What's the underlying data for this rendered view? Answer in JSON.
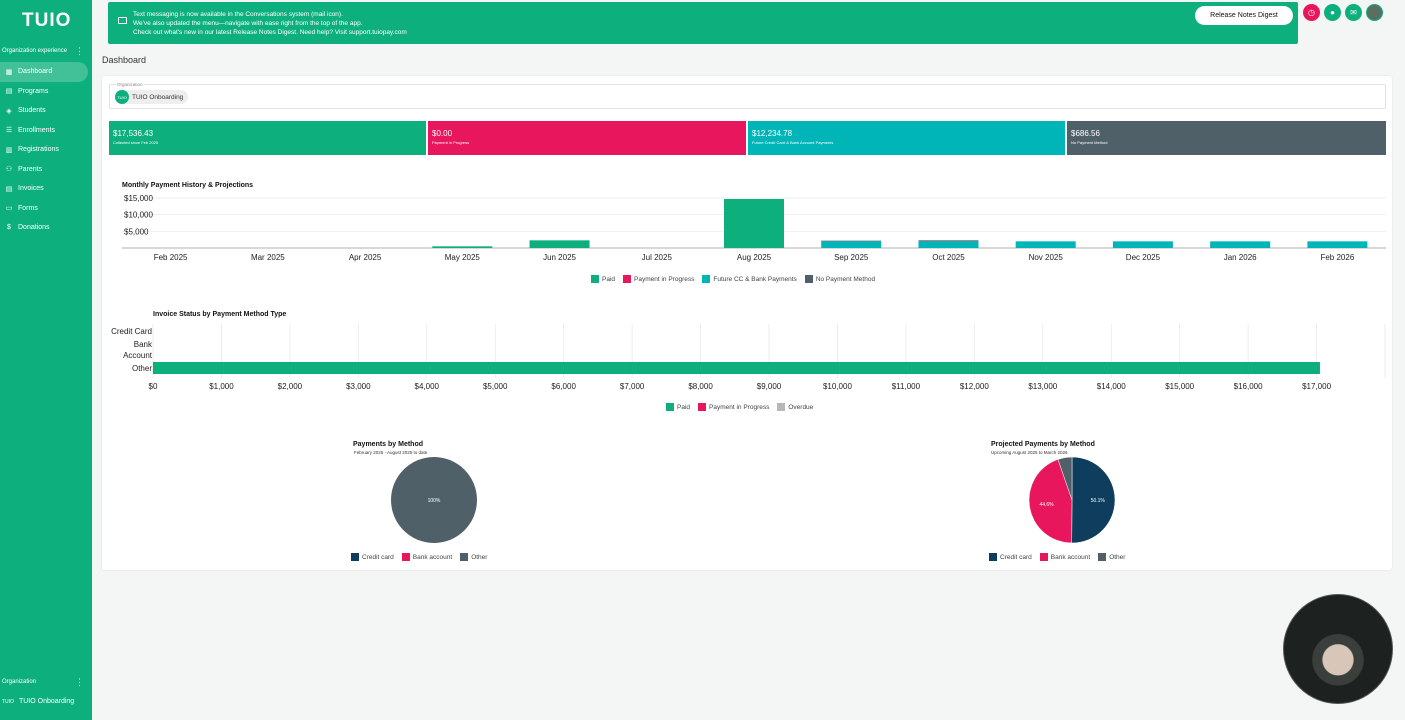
{
  "app": {
    "logo": "TUIO"
  },
  "sidebar": {
    "section_label": "Organization experience",
    "items": [
      {
        "label": "Dashboard",
        "icon": "dashboard-icon",
        "active": true
      },
      {
        "label": "Programs",
        "icon": "programs-icon"
      },
      {
        "label": "Students",
        "icon": "students-icon"
      },
      {
        "label": "Enrollments",
        "icon": "enrollments-icon"
      },
      {
        "label": "Registrations",
        "icon": "registrations-icon"
      },
      {
        "label": "Parents",
        "icon": "parents-icon"
      },
      {
        "label": "Invoices",
        "icon": "invoices-icon"
      },
      {
        "label": "Forms",
        "icon": "forms-icon"
      },
      {
        "label": "Donations",
        "icon": "donations-icon"
      }
    ],
    "footer_label": "Organization",
    "footer_mini": "TUIO",
    "footer_org": "TUIO Onboarding"
  },
  "banner": {
    "line1": "Text messaging is now available in the Conversations system (mail icon).",
    "line2": "We've also updated the menu—navigate with ease right from the top of the app.",
    "line3": "Check out what's new in our latest Release Notes Digest. Need help? Visit support.tuiopay.com",
    "button": "Release Notes Digest"
  },
  "page_title": "Dashboard",
  "org_field": {
    "label": "Organization",
    "avatar": "TUIO",
    "value": "TUIO Onboarding"
  },
  "stats": [
    {
      "value": "$17,536.43",
      "caption": "Collected since Feb 2025",
      "color": "#0db07d"
    },
    {
      "value": "$0.00",
      "caption": "Payment in Progress",
      "color": "#e8175d"
    },
    {
      "value": "$12,234.78",
      "caption": "Future Credit Card & Bank Account Payments",
      "color": "#00b5b8"
    },
    {
      "value": "$686.56",
      "caption": "No Payment Method",
      "color": "#4f6069"
    }
  ],
  "colors": {
    "paid": "#0db07d",
    "progress": "#e8175d",
    "future": "#00b5b8",
    "nopay": "#4f6069",
    "overdue": "#b7b7b7",
    "credit": "#0f3d5e"
  },
  "chart_data": [
    {
      "type": "bar",
      "title": "Monthly Payment History & Projections",
      "categories": [
        "Feb 2025",
        "Mar 2025",
        "Apr 2025",
        "May 2025",
        "Jun 2025",
        "Jul 2025",
        "Aug 2025",
        "Sep 2025",
        "Oct 2025",
        "Nov 2025",
        "Dec 2025",
        "Jan 2026",
        "Feb 2026"
      ],
      "series": [
        {
          "name": "Paid",
          "values": [
            0,
            0,
            0,
            500,
            2300,
            0,
            14700,
            0,
            0,
            0,
            0,
            0,
            0
          ]
        },
        {
          "name": "Payment in Progress",
          "values": [
            0,
            0,
            0,
            0,
            0,
            0,
            0,
            0,
            0,
            0,
            0,
            0,
            0
          ]
        },
        {
          "name": "Future CC & Bank Payments",
          "values": [
            0,
            0,
            0,
            0,
            0,
            0,
            0,
            2000,
            2000,
            2000,
            2000,
            2000,
            2000
          ]
        },
        {
          "name": "No Payment Method",
          "values": [
            0,
            0,
            0,
            0,
            0,
            0,
            0,
            200,
            300,
            0,
            0,
            0,
            0
          ]
        }
      ],
      "yticks": [
        "$15,000",
        "$10,000",
        "$5,000"
      ],
      "ylim": [
        0,
        15000
      ],
      "stacked": true
    },
    {
      "type": "bar",
      "orientation": "horizontal",
      "title": "Invoice Status by Payment Method Type",
      "categories": [
        "Credit Card",
        "Bank Account",
        "Other"
      ],
      "series": [
        {
          "name": "Paid",
          "values": [
            0,
            0,
            17050
          ]
        },
        {
          "name": "Payment in Progress",
          "values": [
            0,
            0,
            0
          ]
        },
        {
          "name": "Overdue",
          "values": [
            0,
            0,
            0
          ]
        }
      ],
      "xticks": [
        "$0",
        "$1,000",
        "$2,000",
        "$3,000",
        "$4,000",
        "$5,000",
        "$6,000",
        "$7,000",
        "$8,000",
        "$9,000",
        "$10,000",
        "$11,000",
        "$12,000",
        "$13,000",
        "$14,000",
        "$15,000",
        "$16,000",
        "$17,000"
      ],
      "xlim": [
        0,
        18000
      ]
    },
    {
      "type": "pie",
      "title": "Payments by Method",
      "subtitle": "February 2025 - August 2025 to date",
      "labels": [
        "Credit card",
        "Bank account",
        "Other"
      ],
      "values": [
        0,
        0,
        100
      ],
      "slice_labels": [
        "",
        "",
        "100%"
      ]
    },
    {
      "type": "pie",
      "title": "Projected Payments by Method",
      "subtitle": "Upcoming August 2025 to March 2026",
      "labels": [
        "Credit card",
        "Bank account",
        "Other"
      ],
      "values": [
        50.1,
        44.6,
        5.3
      ],
      "slice_labels": [
        "50.1%",
        "44.6%",
        ""
      ]
    }
  ]
}
